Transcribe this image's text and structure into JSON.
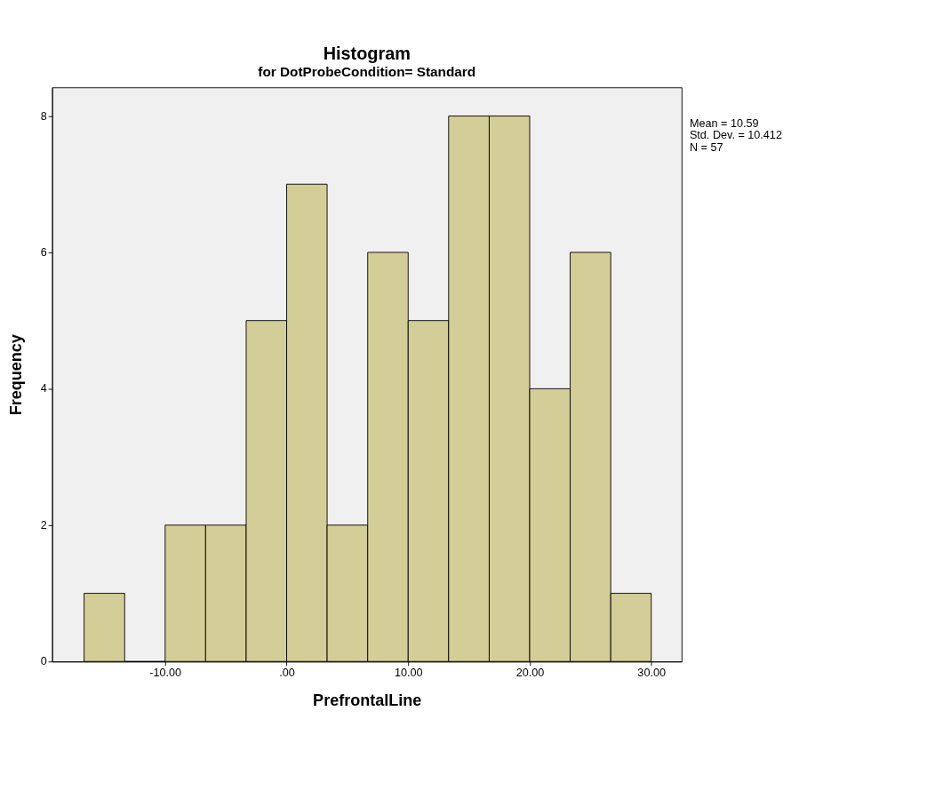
{
  "chart_data": {
    "type": "histogram",
    "title": "Histogram",
    "subtitle": "for DotProbeCondition= Standard",
    "xlabel": "PrefrontalLine",
    "ylabel": "Frequency",
    "bins": [
      -16.67,
      -13.33,
      -10,
      -6.67,
      -3.33,
      0,
      3.33,
      6.67,
      10,
      13.33,
      16.67,
      20,
      23.33,
      26.67,
      30
    ],
    "values": [
      1,
      0,
      2,
      2,
      5,
      7,
      2,
      6,
      5,
      8,
      8,
      4,
      6,
      1
    ],
    "color": "#d3ce97",
    "xlim": [
      -19.3,
      32.5
    ],
    "xticks": [
      {
        "value": -10,
        "label": "-10.00"
      },
      {
        "value": 0,
        "label": ".00"
      },
      {
        "value": 10,
        "label": "10.00"
      },
      {
        "value": 20,
        "label": "20.00"
      },
      {
        "value": 30,
        "label": "30.00"
      }
    ],
    "ylim": [
      0,
      8.42
    ],
    "yticks": [
      0,
      2,
      4,
      6,
      8
    ],
    "grid": false,
    "annotations": [
      "Mean = 10.59",
      "Std. Dev. = 10.412",
      "N = 57"
    ]
  }
}
